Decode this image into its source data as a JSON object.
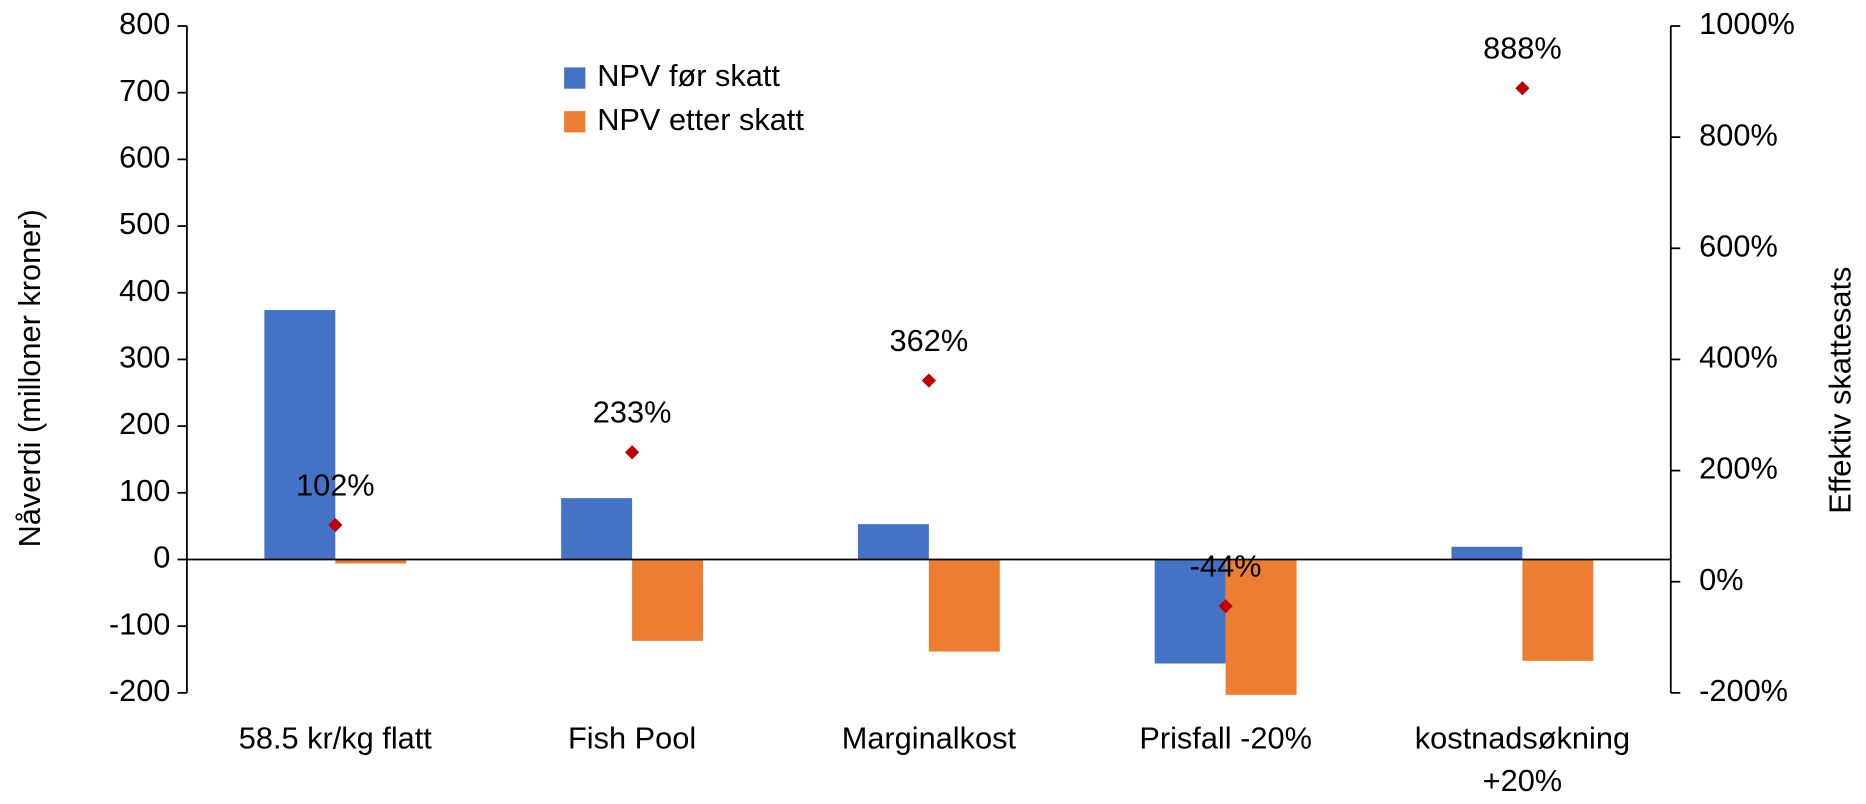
{
  "chart_data": {
    "type": "bar",
    "categories": [
      "58.5 kr/kg flatt",
      "Fish Pool",
      "Marginalkost",
      "Prisfall -20%",
      "kostnadsøkning +20%"
    ],
    "series": [
      {
        "name": "NPV før skatt",
        "color": "#4472c4",
        "values": [
          374,
          92,
          53,
          -156,
          19
        ]
      },
      {
        "name": "NPV etter skatt",
        "color": "#ed7d31",
        "values": [
          -6,
          -122,
          -138,
          -203,
          -152
        ]
      },
      {
        "name": "Effektiv skattesats",
        "type": "scatter",
        "axis": "y2",
        "color": "#c00000",
        "values": [
          102,
          233,
          362,
          -44,
          888
        ],
        "value_labels": [
          "102%",
          "233%",
          "362%",
          "-44%",
          "888%"
        ]
      }
    ],
    "ylabel": "Nåverdi (milloner kroner)",
    "y2label": "Effektiv skattesats",
    "ylim": [
      -200,
      800
    ],
    "yticks": [
      -200,
      -100,
      0,
      100,
      200,
      300,
      400,
      500,
      600,
      700,
      800
    ],
    "y2lim": [
      -200,
      1000
    ],
    "y2ticks": [
      {
        "value": -200,
        "label": "-200%"
      },
      {
        "value": 0,
        "label": "0%"
      },
      {
        "value": 200,
        "label": "200%"
      },
      {
        "value": 400,
        "label": "400%"
      },
      {
        "value": 600,
        "label": "600%"
      },
      {
        "value": 800,
        "label": "800%"
      },
      {
        "value": 1000,
        "label": "1000%"
      }
    ],
    "legend": "top-left"
  }
}
